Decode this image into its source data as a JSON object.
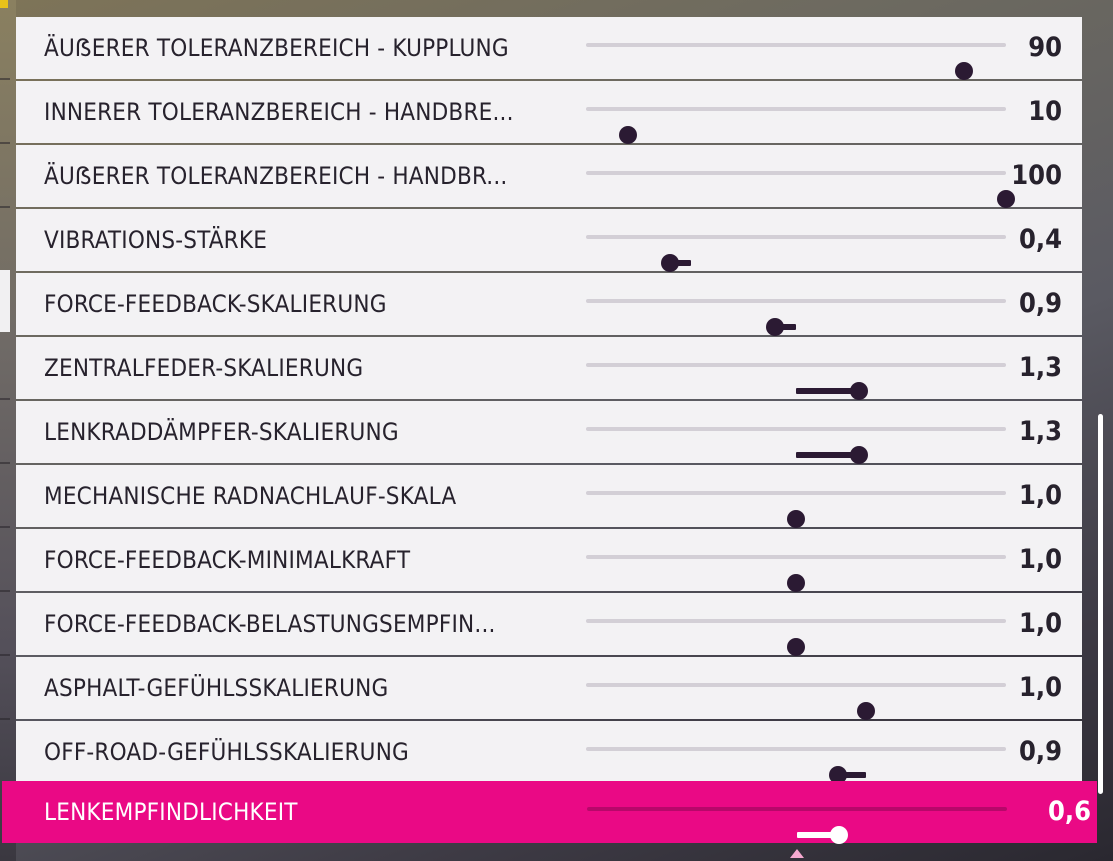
{
  "settings": {
    "rows": [
      {
        "label": "ÄUẞERER TOLERANZBEREICH - KUPPLUNG",
        "value_text": "90",
        "value": 90,
        "min": 0,
        "max": 100,
        "default": 90
      },
      {
        "label": "INNERER TOLERANZBEREICH - HANDBRE...",
        "value_text": "10",
        "value": 10,
        "min": 0,
        "max": 100,
        "default": 10
      },
      {
        "label": "ÄUẞERER TOLERANZBEREICH - HANDBR...",
        "value_text": "100",
        "value": 100,
        "min": 0,
        "max": 100,
        "default": 100
      },
      {
        "label": "VIBRATIONS-STÄRKE",
        "value_text": "0,4",
        "value": 0.4,
        "min": 0,
        "max": 2,
        "default": 0.5
      },
      {
        "label": "FORCE-FEEDBACK-SKALIERUNG",
        "value_text": "0,9",
        "value": 0.9,
        "min": 0,
        "max": 2,
        "default": 1.0
      },
      {
        "label": "ZENTRALFEDER-SKALIERUNG",
        "value_text": "1,3",
        "value": 1.3,
        "min": 0,
        "max": 2,
        "default": 1.0
      },
      {
        "label": "LENKRADDÄMPFER-SKALIERUNG",
        "value_text": "1,3",
        "value": 1.3,
        "min": 0,
        "max": 2,
        "default": 1.0
      },
      {
        "label": "MECHANISCHE RADNACHLAUF-SKALA",
        "value_text": "1,0",
        "value": 1.0,
        "min": 0,
        "max": 2,
        "default": 1.0
      },
      {
        "label": "FORCE-FEEDBACK-MINIMALKRAFT",
        "value_text": "1,0",
        "value": 1.0,
        "min": 0,
        "max": 2,
        "default": 1.0
      },
      {
        "label": "FORCE-FEEDBACK-BELASTUNGSEMPFIN...",
        "value_text": "1,0",
        "value": 1.0,
        "min": 0,
        "max": 2,
        "default": 1.0
      },
      {
        "label": "ASPHALT-GEFÜHLSSKALIERUNG",
        "value_text": "1,0",
        "value": 1.0,
        "min": 0,
        "max": 1.5,
        "default": 1.0
      },
      {
        "label": "OFF-ROAD-GEFÜHLSSKALIERUNG",
        "value_text": "0,9",
        "value": 0.9,
        "min": 0,
        "max": 1.5,
        "default": 1.0
      }
    ],
    "selected": {
      "label": "LENKEMPFINDLICHKEIT",
      "value_text": "0,6",
      "value": 0.6,
      "min": 0,
      "max": 1,
      "default": 0.5
    }
  },
  "icons": {
    "knob": "slider-knob-icon",
    "default_marker": "default-value-triangle-icon"
  },
  "colors": {
    "row_background": "#f3f2f4",
    "text": "#27222d",
    "knob": "#2b1a33",
    "track": "#d3cfd6",
    "default_marker": "#8b8592",
    "selected_background": "#ea0985",
    "selected_text": "#ffffff"
  }
}
